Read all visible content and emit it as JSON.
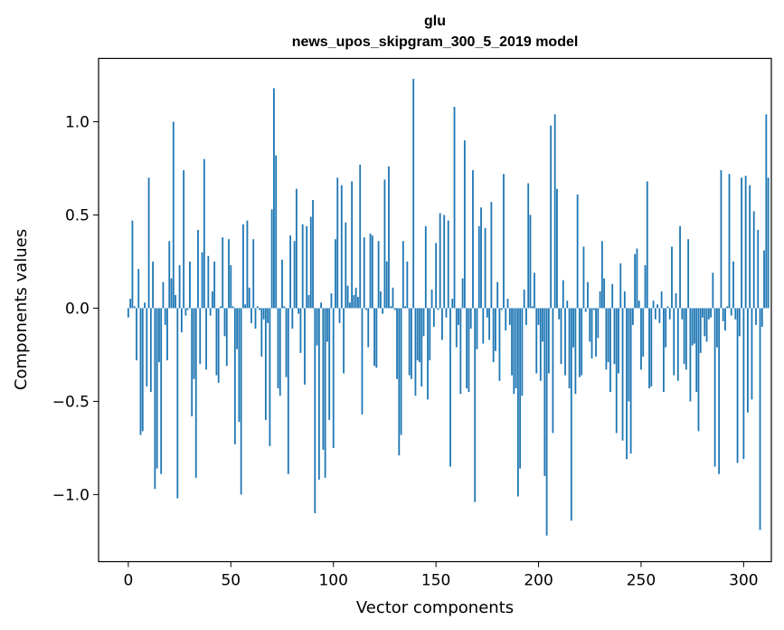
{
  "chart_data": {
    "type": "bar",
    "title": "glu",
    "subtitle": "news_upos_skipgram_300_5_2019 model",
    "xlabel": "Vector components",
    "ylabel": "Components values",
    "xlim": [
      -14.5,
      313.5
    ],
    "ylim": [
      -1.36,
      1.34
    ],
    "xticks": [
      0,
      50,
      100,
      150,
      200,
      250,
      300
    ],
    "yticks": [
      -1.0,
      -0.5,
      0.0,
      0.5,
      1.0
    ],
    "xtick_labels": [
      "0",
      "50",
      "100",
      "150",
      "200",
      "250",
      "300"
    ],
    "ytick_labels": [
      "−1.0",
      "−0.5",
      "0.0",
      "0.5",
      "1.0"
    ],
    "bar_color": "#1f77b4",
    "values": [
      -0.05,
      0.05,
      0.47,
      0.01,
      -0.28,
      0.21,
      -0.68,
      -0.66,
      0.03,
      -0.42,
      0.7,
      -0.45,
      0.25,
      -0.97,
      -0.86,
      -0.29,
      -0.89,
      0.14,
      -0.09,
      -0.28,
      0.36,
      0.16,
      1.0,
      0.07,
      -1.02,
      0.23,
      -0.13,
      0.74,
      -0.04,
      -0.01,
      0.25,
      -0.58,
      -0.38,
      -0.91,
      0.42,
      -0.3,
      0.3,
      0.8,
      -0.33,
      0.28,
      -0.04,
      0.09,
      0.25,
      -0.36,
      -0.4,
      0.01,
      0.38,
      -0.15,
      -0.31,
      0.37,
      0.23,
      0.01,
      -0.73,
      -0.22,
      -0.61,
      -1.0,
      0.45,
      0.02,
      0.47,
      0.11,
      -0.08,
      0.37,
      -0.11,
      0.01,
      -0.01,
      -0.26,
      -0.06,
      -0.6,
      -0.08,
      -0.74,
      0.53,
      1.18,
      0.82,
      -0.43,
      -0.47,
      0.26,
      0.01,
      -0.37,
      -0.89,
      0.39,
      -0.11,
      0.36,
      0.64,
      -0.03,
      -0.24,
      0.45,
      -0.41,
      0.44,
      0.07,
      0.49,
      0.58,
      -1.1,
      -0.2,
      -0.92,
      0.03,
      -0.76,
      -0.91,
      -0.18,
      -0.6,
      0.08,
      -0.75,
      0.37,
      0.7,
      -0.08,
      0.66,
      -0.35,
      0.46,
      0.12,
      0.03,
      0.68,
      0.07,
      0.11,
      0.06,
      0.77,
      -0.57,
      0.38,
      -0.01,
      -0.21,
      0.4,
      0.39,
      -0.31,
      -0.32,
      0.36,
      0.09,
      -0.03,
      0.69,
      0.25,
      0.76,
      0.01,
      0.11,
      -0.01,
      -0.38,
      -0.79,
      -0.68,
      0.36,
      0.01,
      0.25,
      -0.36,
      -0.38,
      1.23,
      -0.47,
      -0.28,
      -0.29,
      -0.42,
      -0.15,
      0.44,
      -0.49,
      -0.28,
      0.1,
      -0.1,
      0.35,
      -0.01,
      0.51,
      -0.17,
      0.5,
      -0.05,
      0.47,
      -0.85,
      0.05,
      1.08,
      -0.21,
      -0.09,
      -0.46,
      0.16,
      0.9,
      -0.43,
      -0.45,
      -0.11,
      0.74,
      -1.04,
      -0.22,
      0.44,
      0.54,
      -0.19,
      0.43,
      -0.05,
      -0.17,
      0.57,
      -0.29,
      -0.23,
      0.14,
      -0.39,
      -0.01,
      0.72,
      -0.12,
      0.05,
      -0.09,
      -0.36,
      -0.46,
      -0.43,
      -1.01,
      -0.86,
      -0.47,
      0.1,
      -0.09,
      0.67,
      0.5,
      0.01,
      0.19,
      -0.35,
      -0.09,
      -0.39,
      -0.18,
      -0.9,
      -1.22,
      -0.35,
      0.98,
      -0.67,
      1.04,
      0.64,
      -0.06,
      -0.3,
      0.15,
      -0.36,
      0.04,
      -0.43,
      -1.14,
      -0.21,
      -0.46,
      0.61,
      -0.37,
      -0.36,
      0.33,
      -0.02,
      0.14,
      -0.18,
      -0.27,
      -0.01,
      -0.26,
      -0.16,
      0.09,
      0.36,
      0.16,
      -0.33,
      -0.29,
      -0.45,
      0.13,
      -0.3,
      -0.67,
      -0.35,
      0.24,
      -0.71,
      0.09,
      -0.81,
      -0.5,
      -0.78,
      -0.09,
      0.29,
      0.32,
      0.04,
      -0.33,
      -0.26,
      0.23,
      0.68,
      -0.43,
      -0.42,
      0.04,
      -0.06,
      0.02,
      -0.08,
      0.09,
      -0.45,
      -0.21,
      0.01,
      -0.06,
      0.33,
      -0.36,
      0.08,
      -0.39,
      0.44,
      -0.06,
      -0.3,
      -0.33,
      0.37,
      -0.5,
      -0.2,
      -0.19,
      -0.45,
      -0.66,
      -0.24,
      -0.05,
      -0.15,
      -0.18,
      -0.06,
      -0.05,
      0.19,
      -0.85,
      -0.21,
      -0.89,
      0.74,
      -0.07,
      -0.12,
      0.01,
      0.72,
      -0.04,
      0.25,
      -0.06,
      -0.83,
      -0.15,
      0.7,
      -0.81,
      0.71,
      -0.56,
      0.66,
      -0.49,
      0.52,
      -0.09,
      0.42,
      -1.19,
      -0.1,
      0.31,
      1.04,
      0.7
    ]
  }
}
